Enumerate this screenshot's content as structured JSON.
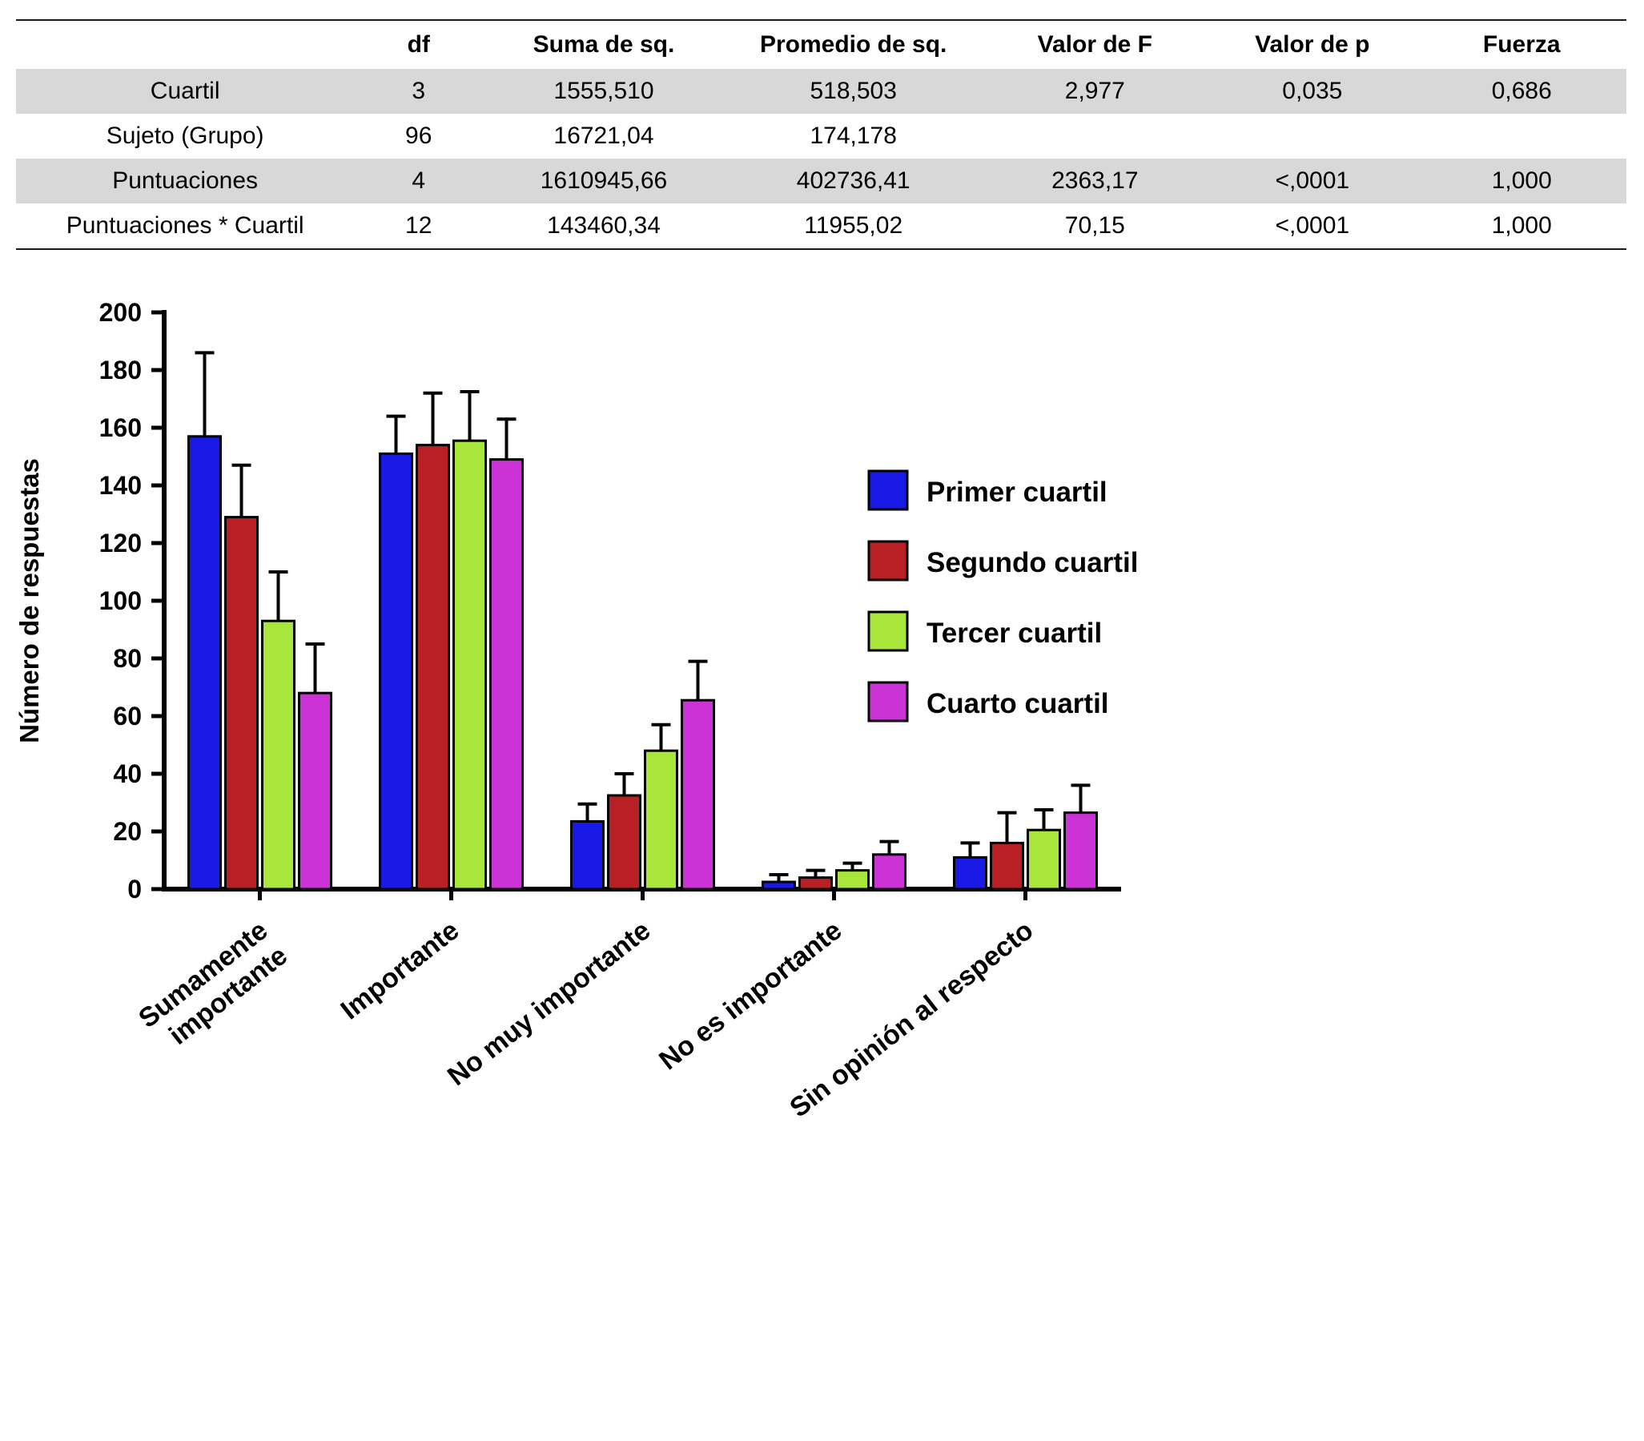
{
  "table": {
    "columns": [
      "",
      "df",
      "Suma de sq.",
      "Promedio de sq.",
      "Valor de F",
      "Valor de p",
      "Fuerza"
    ],
    "rows": [
      {
        "label": "Cuartil",
        "values": [
          "3",
          "1555,510",
          "518,503",
          "2,977",
          "0,035",
          "0,686"
        ],
        "shaded": true
      },
      {
        "label": "Sujeto (Grupo)",
        "values": [
          "96",
          "16721,04",
          "174,178",
          "",
          "",
          ""
        ],
        "shaded": false
      },
      {
        "label": "Puntuaciones",
        "values": [
          "4",
          "1610945,66",
          "402736,41",
          "2363,17",
          "<,0001",
          "1,000"
        ],
        "shaded": true
      },
      {
        "label": "Puntuaciones * Cuartil",
        "values": [
          "12",
          "143460,34",
          "11955,02",
          "70,15",
          "<,0001",
          "1,000"
        ],
        "shaded": false
      }
    ],
    "shaded_color": "#d8d8d8"
  },
  "chart_data": {
    "type": "bar",
    "categories": [
      "Sumamente\nimportante",
      "Importante",
      "No muy importante",
      "No es importante",
      "Sin opinión al respecto"
    ],
    "series": [
      {
        "name": "Primer cuartil",
        "color": "#1a1ae6",
        "values": [
          157,
          151,
          23.5,
          2.5,
          11
        ],
        "errors_upper": [
          29,
          13,
          6,
          2.5,
          5
        ]
      },
      {
        "name": "Segundo cuartil",
        "color": "#b82025",
        "values": [
          129,
          154,
          32.5,
          4,
          16
        ],
        "errors_upper": [
          18,
          18,
          7.5,
          2.5,
          10.5
        ]
      },
      {
        "name": "Tercer cuartil",
        "color": "#a8e63c",
        "values": [
          93,
          155.5,
          48,
          6.5,
          20.5
        ],
        "errors_upper": [
          17,
          17,
          9,
          2.5,
          7
        ]
      },
      {
        "name": "Cuarto cuartil",
        "color": "#cc33d6",
        "values": [
          68,
          149,
          65.5,
          12,
          26.5
        ],
        "errors_upper": [
          17,
          14,
          13.5,
          4.5,
          9.5
        ]
      }
    ],
    "title": "",
    "xlabel": "",
    "ylabel": "Número de respuestas",
    "ylim": [
      0,
      200
    ],
    "ytick_step": 20,
    "grid": false,
    "legend_position": "upper right",
    "error_bars": "upper only, black caps",
    "bar_outline_color": "#000000"
  }
}
